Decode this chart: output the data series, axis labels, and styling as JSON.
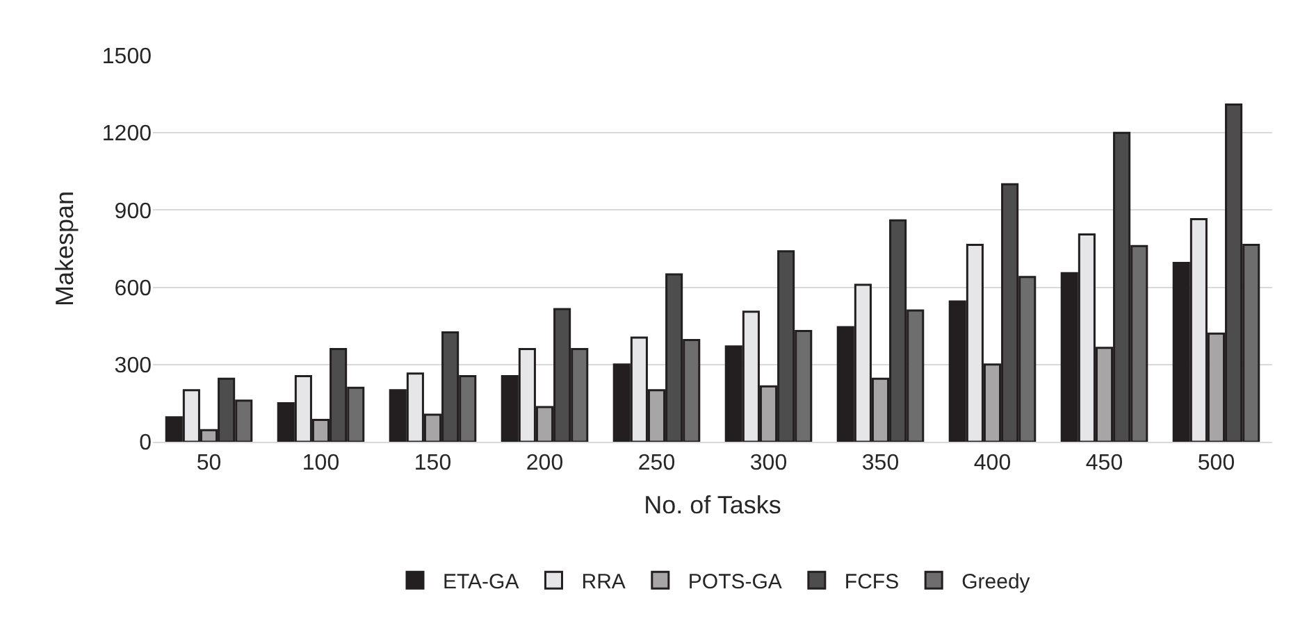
{
  "chart_data": {
    "type": "bar",
    "xlabel": "No. of Tasks",
    "ylabel": "Makespan",
    "categories": [
      "50",
      "100",
      "150",
      "200",
      "250",
      "300",
      "350",
      "400",
      "450",
      "500"
    ],
    "series": [
      {
        "name": "ETA-GA",
        "color": "#231f20",
        "values": [
          95,
          150,
          200,
          255,
          300,
          370,
          445,
          545,
          655,
          695
        ]
      },
      {
        "name": "RRA",
        "color": "#e6e6e8",
        "values": [
          200,
          255,
          265,
          360,
          405,
          505,
          610,
          765,
          805,
          865
        ]
      },
      {
        "name": "POTS-GA",
        "color": "#a7a5a6",
        "values": [
          45,
          85,
          105,
          135,
          200,
          215,
          245,
          300,
          365,
          420
        ]
      },
      {
        "name": "FCFS",
        "color": "#4d4d4d",
        "values": [
          245,
          360,
          425,
          515,
          650,
          740,
          860,
          1000,
          1200,
          1310
        ]
      },
      {
        "name": "Greedy",
        "color": "#6e6e6e",
        "values": [
          160,
          210,
          255,
          360,
          395,
          430,
          510,
          640,
          760,
          765
        ]
      }
    ],
    "ylim": [
      0,
      1500
    ],
    "yticks": [
      0,
      300,
      600,
      900,
      1200,
      1500
    ],
    "grid": "y",
    "legend": "bottom"
  }
}
